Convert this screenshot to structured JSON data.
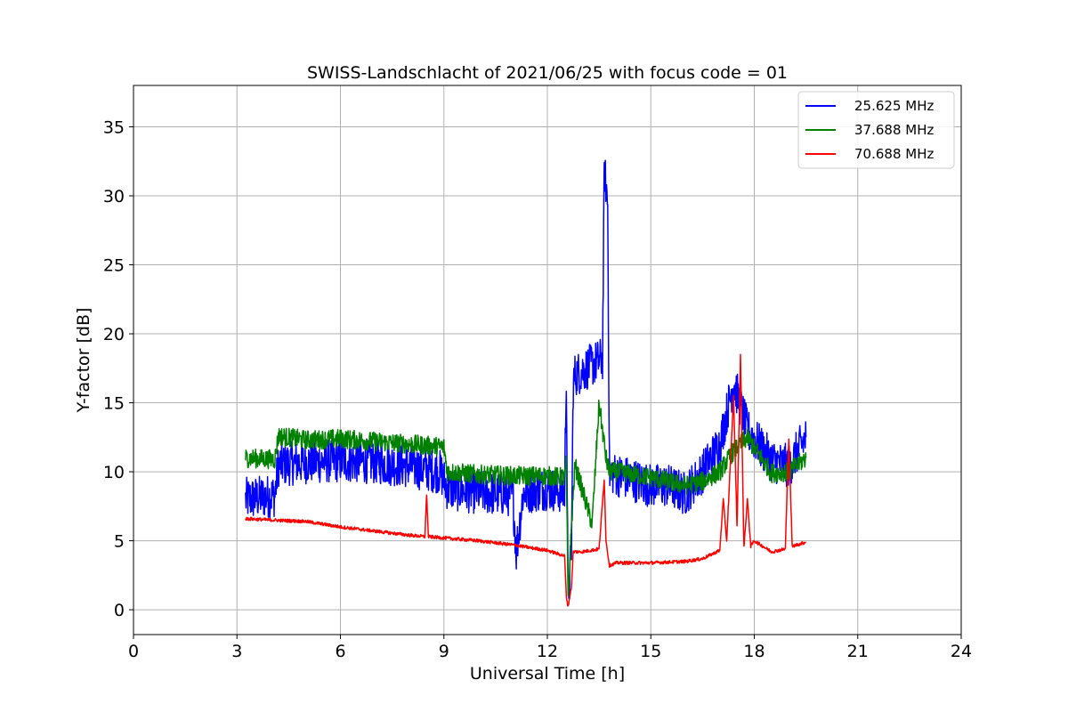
{
  "chart_data": {
    "type": "line",
    "title": "SWISS-Landschlacht of 2021/06/25 with focus code = 01",
    "xlabel": "Universal Time [h]",
    "ylabel": "Y-factor [dB]",
    "xlim": [
      0,
      24
    ],
    "ylim": [
      -1.8,
      38
    ],
    "xticks": [
      0,
      3,
      6,
      9,
      12,
      15,
      18,
      21,
      24
    ],
    "xtick_labels": [
      "0",
      "3",
      "6",
      "9",
      "12",
      "15",
      "18",
      "21",
      "24"
    ],
    "yticks": [
      0,
      5,
      10,
      15,
      20,
      25,
      30,
      35
    ],
    "ytick_labels": [
      "0",
      "5",
      "10",
      "15",
      "20",
      "25",
      "30",
      "35"
    ],
    "grid": true,
    "legend_position": "top-right",
    "series": [
      {
        "name": "25.625 MHz",
        "color": "#0000ff",
        "noise_amplitude": 1.6,
        "x": [
          3.25,
          4.1,
          4.2,
          5.0,
          6.0,
          7.0,
          8.0,
          8.9,
          9.1,
          10.0,
          11.0,
          11.1,
          11.3,
          12.0,
          12.5,
          12.55,
          12.6,
          12.7,
          12.75,
          12.8,
          13.6,
          13.65,
          13.75,
          13.8,
          14.0,
          15.0,
          15.5,
          16.0,
          16.5,
          17.0,
          17.4,
          17.8,
          18.5,
          19.0,
          19.5
        ],
        "y": [
          8.0,
          8.3,
          10.5,
          10.7,
          10.8,
          10.7,
          10.4,
          10.0,
          8.8,
          8.5,
          8.3,
          4.2,
          8.5,
          8.8,
          8.5,
          17.3,
          0.5,
          4.5,
          16.2,
          17.0,
          18.2,
          32.0,
          29.5,
          10.0,
          9.8,
          9.0,
          9.0,
          8.4,
          10.0,
          12.0,
          16.5,
          13.0,
          10.8,
          10.4,
          12.5
        ]
      },
      {
        "name": "37.688 MHz",
        "color": "#008000",
        "noise_amplitude": 0.7,
        "x": [
          3.25,
          4.1,
          4.2,
          5.0,
          6.0,
          7.0,
          8.0,
          9.0,
          9.1,
          10.0,
          11.0,
          12.0,
          12.5,
          12.55,
          12.6,
          12.7,
          12.8,
          13.3,
          13.5,
          13.7,
          13.8,
          14.0,
          15.0,
          16.0,
          16.5,
          17.0,
          17.4,
          17.8,
          18.5,
          19.0,
          19.5
        ],
        "y": [
          11.0,
          10.9,
          12.6,
          12.3,
          12.4,
          12.2,
          12.0,
          11.8,
          10.0,
          9.8,
          9.7,
          9.7,
          9.6,
          10.7,
          0.5,
          6.1,
          10.5,
          6.2,
          15.0,
          11.0,
          10.0,
          10.0,
          9.6,
          9.0,
          9.3,
          10.0,
          11.5,
          12.5,
          9.9,
          10.0,
          11.0
        ]
      },
      {
        "name": "70.688 MHz",
        "color": "#ff0000",
        "noise_amplitude": 0.12,
        "x": [
          3.25,
          4.0,
          5.0,
          6.0,
          7.0,
          8.0,
          8.45,
          8.5,
          8.55,
          9.0,
          10.0,
          11.0,
          12.0,
          12.5,
          12.55,
          12.6,
          12.7,
          12.75,
          13.0,
          13.5,
          13.65,
          13.7,
          13.8,
          14.0,
          15.0,
          16.0,
          16.5,
          17.0,
          17.1,
          17.2,
          17.4,
          17.5,
          17.6,
          17.7,
          17.8,
          17.9,
          18.0,
          18.5,
          18.9,
          19.0,
          19.1,
          19.5
        ],
        "y": [
          6.6,
          6.5,
          6.4,
          6.0,
          5.7,
          5.4,
          5.3,
          8.4,
          5.3,
          5.2,
          5.0,
          4.7,
          4.3,
          3.9,
          1.0,
          0.2,
          1.7,
          4.2,
          4.2,
          4.4,
          9.5,
          5.0,
          3.2,
          3.4,
          3.4,
          3.5,
          3.7,
          4.3,
          8.0,
          5.0,
          15.5,
          6.0,
          18.5,
          4.5,
          8.0,
          4.6,
          5.0,
          4.2,
          4.4,
          12.5,
          4.6,
          4.9
        ]
      }
    ]
  }
}
